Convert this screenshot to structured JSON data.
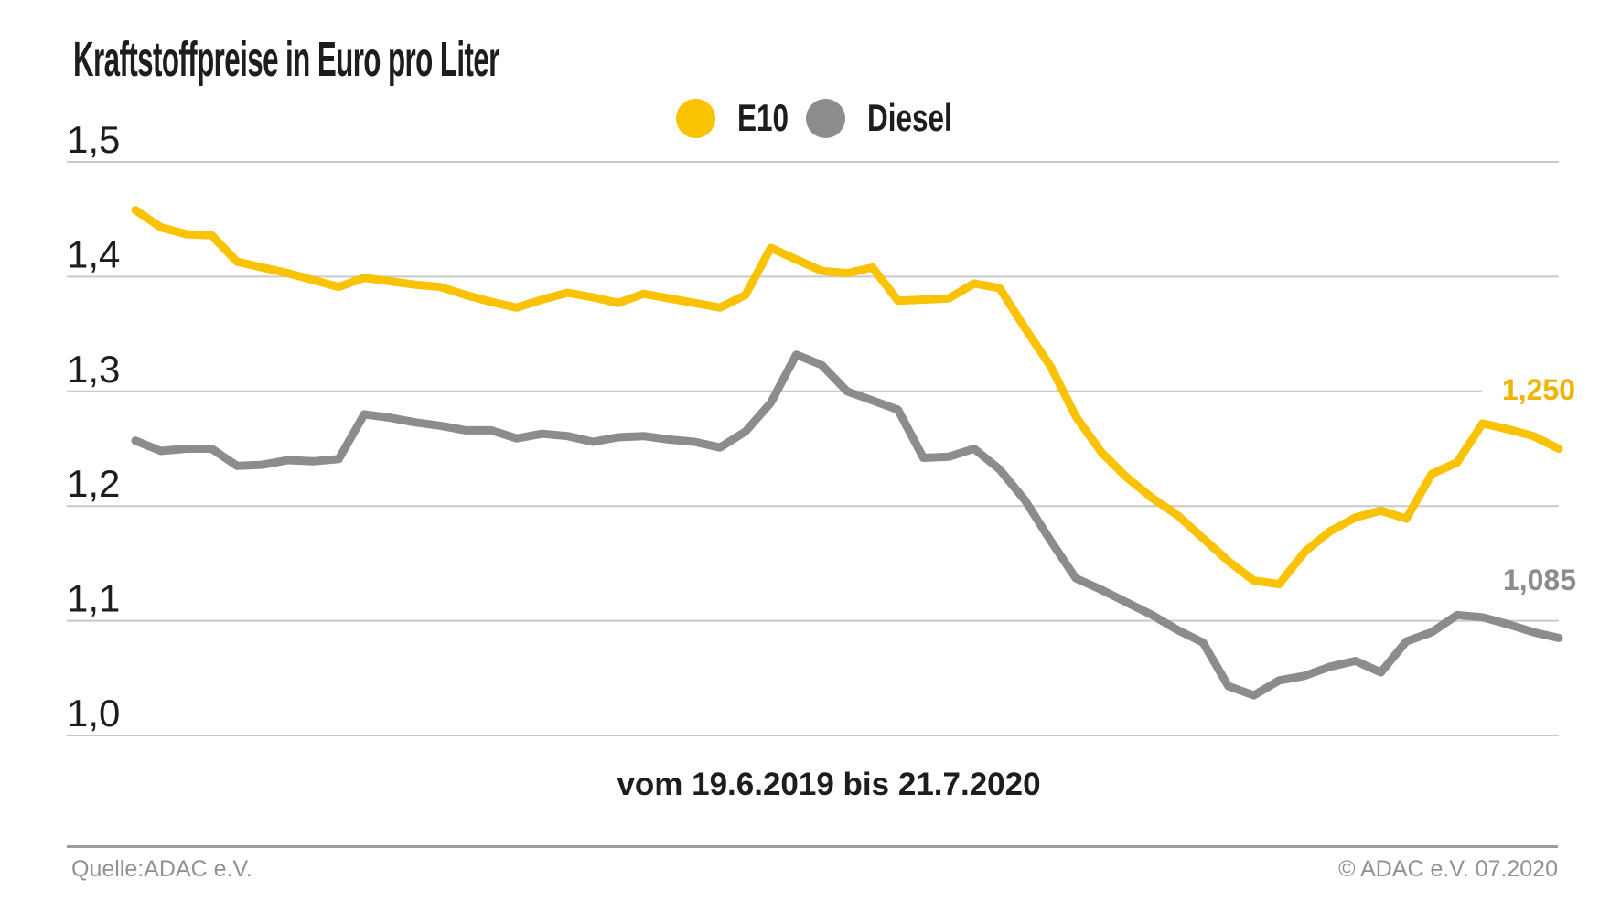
{
  "title": "Kraftstoffpreise in Euro pro Liter",
  "legend": [
    {
      "label": "E10",
      "color": "#f9c301"
    },
    {
      "label": "Diesel",
      "color": "#8c8c8c"
    }
  ],
  "caption": "vom 19.6.2019 bis 21.7.2020",
  "footer": {
    "source": "Quelle:ADAC e.V.",
    "copyright": "© ADAC e.V. 07.2020"
  },
  "colors": {
    "e10": "#f9c301",
    "e10_label": "#f0b400",
    "diesel": "#8c8c8c",
    "grid": "#c9c9c9",
    "text": "#1d1d1b",
    "footer_text": "#929292"
  },
  "chart_data": {
    "type": "line",
    "title": "Kraftstoffpreise in Euro pro Liter",
    "xlabel": "vom 19.6.2019 bis 21.7.2020",
    "ylabel": "Euro pro Liter",
    "x_start": "19.6.2019",
    "x_end": "21.7.2020",
    "ylim": [
      1.0,
      1.5
    ],
    "grid": true,
    "legend_position": "top-center",
    "y_ticks": [
      "1,5",
      "1,4",
      "1,3",
      "1,2",
      "1,1",
      "1,0"
    ],
    "series": [
      {
        "name": "E10",
        "color": "#f9c301",
        "end_label": "1,250",
        "end_value": 1.25,
        "values": [
          1.458,
          1.443,
          1.437,
          1.436,
          1.413,
          1.408,
          1.403,
          1.397,
          1.391,
          1.399,
          1.396,
          1.393,
          1.391,
          1.384,
          1.378,
          1.373,
          1.38,
          1.386,
          1.382,
          1.377,
          1.385,
          1.381,
          1.377,
          1.373,
          1.384,
          1.425,
          1.415,
          1.405,
          1.403,
          1.408,
          1.379,
          1.38,
          1.381,
          1.394,
          1.39,
          1.355,
          1.322,
          1.278,
          1.247,
          1.225,
          1.207,
          1.192,
          1.172,
          1.152,
          1.135,
          1.132,
          1.16,
          1.178,
          1.19,
          1.196,
          1.189,
          1.228,
          1.238,
          1.272,
          1.267,
          1.261,
          1.25
        ]
      },
      {
        "name": "Diesel",
        "color": "#8c8c8c",
        "end_label": "1,085",
        "end_value": 1.085,
        "values": [
          1.257,
          1.248,
          1.25,
          1.25,
          1.235,
          1.236,
          1.24,
          1.239,
          1.241,
          1.28,
          1.277,
          1.273,
          1.27,
          1.266,
          1.266,
          1.259,
          1.263,
          1.261,
          1.256,
          1.26,
          1.261,
          1.258,
          1.256,
          1.251,
          1.265,
          1.29,
          1.332,
          1.323,
          1.3,
          1.292,
          1.284,
          1.242,
          1.243,
          1.25,
          1.232,
          1.205,
          1.17,
          1.137,
          1.127,
          1.116,
          1.105,
          1.092,
          1.081,
          1.043,
          1.035,
          1.048,
          1.052,
          1.06,
          1.065,
          1.055,
          1.082,
          1.09,
          1.105,
          1.103,
          1.097,
          1.09,
          1.085
        ]
      }
    ]
  }
}
